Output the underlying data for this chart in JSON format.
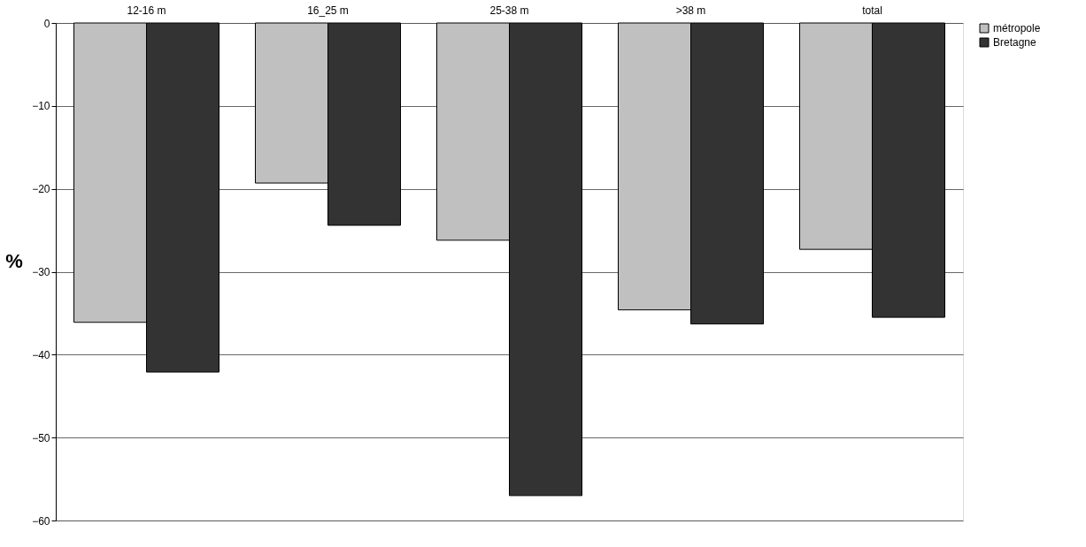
{
  "chart_data": {
    "type": "bar",
    "ylabel": "%",
    "categories": [
      "12-16 m",
      "16_25 m",
      "25-38 m",
      ">38 m",
      "total"
    ],
    "series": [
      {
        "name": "métropole",
        "color": "#c0c0c0",
        "values": [
          -36.1,
          -19.3,
          -26.2,
          -34.6,
          -27.3
        ]
      },
      {
        "name": "Bretagne",
        "color": "#333333",
        "values": [
          -42.1,
          -24.4,
          -57.0,
          -36.3,
          -35.5
        ]
      }
    ],
    "ylim": [
      -60,
      0
    ],
    "yticks": [
      0,
      -10,
      -20,
      -30,
      -40,
      -50,
      -60
    ],
    "grid": "y",
    "legend": "right"
  }
}
